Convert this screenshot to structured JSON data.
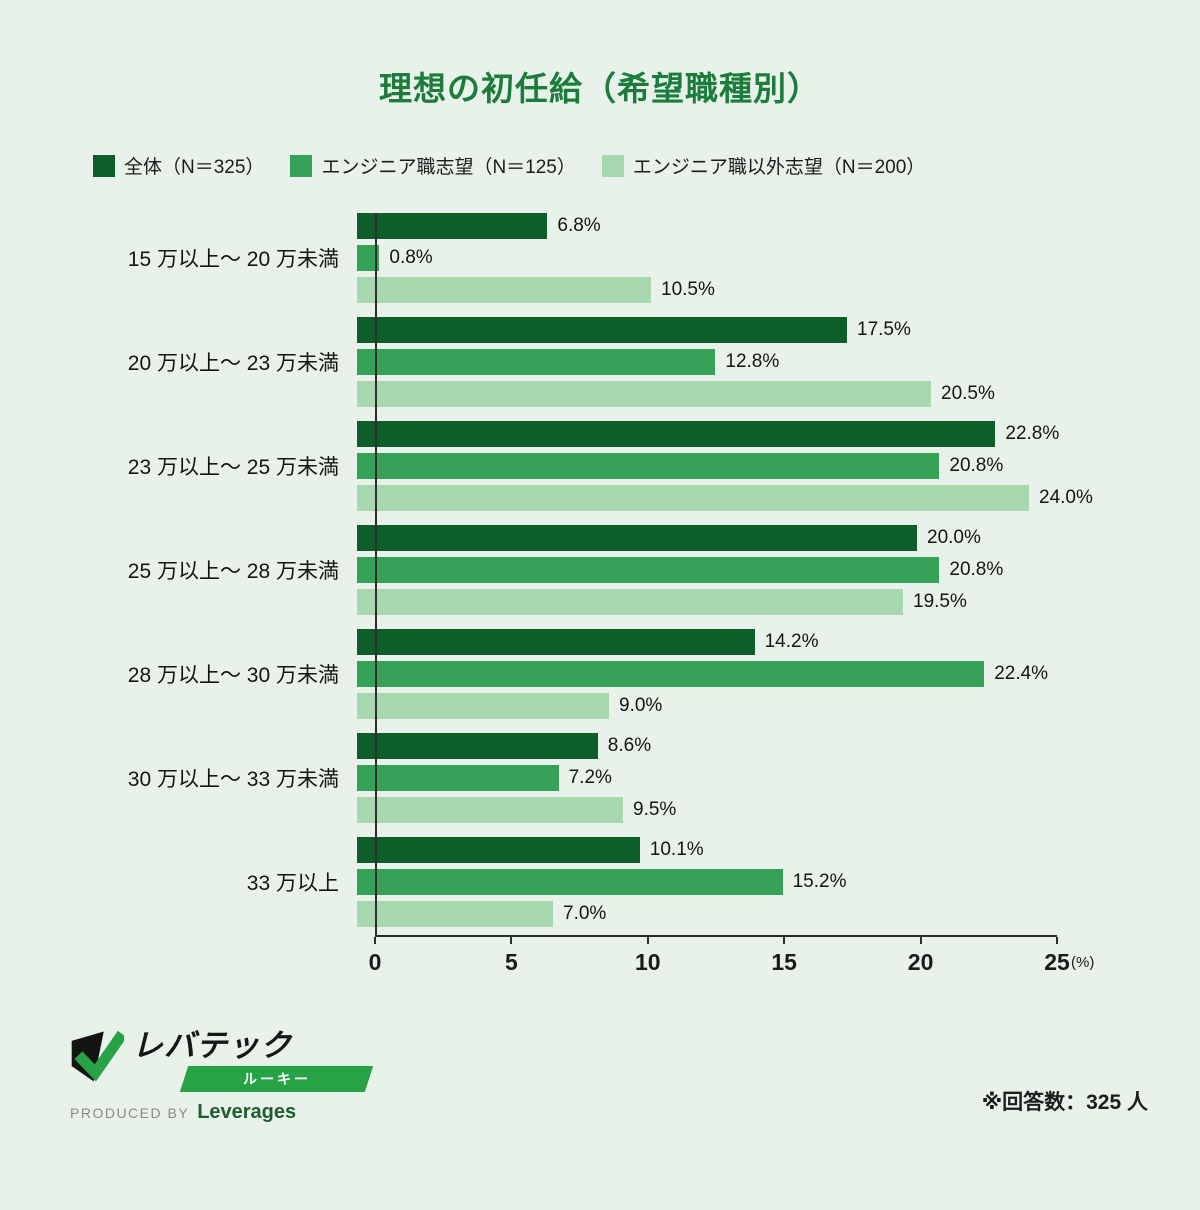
{
  "page": {
    "footnote": "※回答数：325 人"
  },
  "colors": {
    "background": "#e9f2ea",
    "title": "#1b7c3b",
    "series_dark": "#0e5e2c",
    "series_mid": "#36a257",
    "series_light": "#a6d7af",
    "badge": "#27a245",
    "company": "#1f5c33"
  },
  "chart_data": {
    "type": "bar",
    "orientation": "horizontal",
    "title": "理想の初任給（希望職種別）",
    "categories": [
      "15 万以上〜 20 万未満",
      "20 万以上〜 23 万未満",
      "23 万以上〜 25 万未満",
      "25 万以上〜 28 万未満",
      "28 万以上〜 30 万未満",
      "30 万以上〜 33 万未満",
      "33 万以上"
    ],
    "series": [
      {
        "name": "全体（N＝325）",
        "color": "#0e5e2c",
        "values": [
          6.8,
          17.5,
          22.8,
          20.0,
          14.2,
          8.6,
          10.1
        ]
      },
      {
        "name": "エンジニア職志望（N＝125）",
        "color": "#36a257",
        "values": [
          0.8,
          12.8,
          20.8,
          20.8,
          22.4,
          7.2,
          15.2
        ]
      },
      {
        "name": "エンジニア職以外志望（N＝200）",
        "color": "#a6d7af",
        "values": [
          10.5,
          20.5,
          24.0,
          19.5,
          9.0,
          9.5,
          7.0
        ]
      }
    ],
    "xlim": [
      0,
      25
    ],
    "x_ticks": [
      0,
      5,
      10,
      15,
      20,
      25
    ],
    "x_unit": "(%)",
    "value_suffix": "%",
    "legend_position": "top",
    "grid": false
  },
  "logo": {
    "brand": "レバテック",
    "badge": "ルーキー",
    "produced_by": "PRODUCED BY",
    "company": "Leverages"
  }
}
